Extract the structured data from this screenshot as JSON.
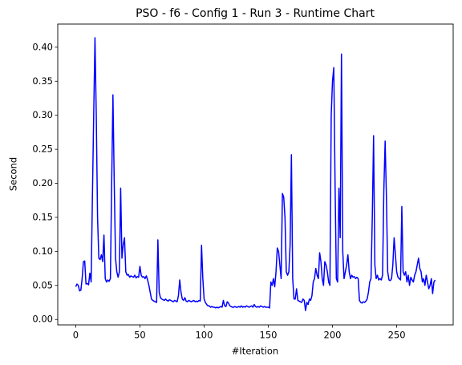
{
  "chart_data": {
    "type": "line",
    "title": "PSO - f6 - Config 1 - Run 3 - Runtime Chart",
    "x_label": "#Iteration",
    "y_label": "Second",
    "color": "#0000ff",
    "x": [
      0,
      1,
      2,
      3,
      4,
      5,
      6,
      7,
      8,
      9,
      10,
      11,
      12,
      13,
      14,
      15,
      16,
      17,
      18,
      19,
      20,
      21,
      22,
      23,
      24,
      25,
      26,
      27,
      28,
      29,
      30,
      31,
      32,
      33,
      34,
      35,
      36,
      37,
      38,
      39,
      40,
      41,
      42,
      43,
      44,
      45,
      46,
      47,
      48,
      49,
      50,
      51,
      52,
      53,
      54,
      55,
      56,
      57,
      58,
      59,
      60,
      61,
      62,
      63,
      64,
      65,
      66,
      67,
      68,
      69,
      70,
      71,
      72,
      73,
      74,
      75,
      76,
      77,
      78,
      79,
      80,
      81,
      82,
      83,
      84,
      85,
      86,
      87,
      88,
      89,
      90,
      91,
      92,
      93,
      94,
      95,
      96,
      97,
      98,
      99,
      100,
      101,
      102,
      103,
      104,
      105,
      106,
      107,
      108,
      109,
      110,
      111,
      112,
      113,
      114,
      115,
      116,
      117,
      118,
      119,
      120,
      121,
      122,
      123,
      124,
      125,
      126,
      127,
      128,
      129,
      130,
      131,
      132,
      133,
      134,
      135,
      136,
      137,
      138,
      139,
      140,
      141,
      142,
      143,
      144,
      145,
      146,
      147,
      148,
      149,
      150,
      151,
      152,
      153,
      154,
      155,
      156,
      157,
      158,
      159,
      160,
      161,
      162,
      163,
      164,
      165,
      166,
      167,
      168,
      169,
      170,
      171,
      172,
      173,
      174,
      175,
      176,
      177,
      178,
      179,
      180,
      181,
      182,
      183,
      184,
      185,
      186,
      187,
      188,
      189,
      190,
      191,
      192,
      193,
      194,
      195,
      196,
      197,
      198,
      199,
      200,
      201,
      202,
      203,
      204,
      205,
      206,
      207,
      208,
      209,
      210,
      211,
      212,
      213,
      214,
      215,
      216,
      217,
      218,
      219,
      220,
      221,
      222,
      223,
      224,
      225,
      226,
      227,
      228,
      229,
      230,
      231,
      232,
      233,
      234,
      235,
      236,
      237,
      238,
      239,
      240,
      241,
      242,
      243,
      244,
      245,
      246,
      247,
      248,
      249,
      250,
      251,
      252,
      253,
      254,
      255,
      256,
      257,
      258,
      259,
      260,
      261,
      262,
      263,
      264,
      265,
      266,
      267,
      268,
      269,
      270,
      271,
      272,
      273,
      274,
      275,
      276,
      277,
      278,
      279,
      280
    ],
    "values": [
      0.048,
      0.052,
      0.05,
      0.042,
      0.043,
      0.06,
      0.085,
      0.086,
      0.052,
      0.053,
      0.051,
      0.068,
      0.055,
      0.18,
      0.3,
      0.414,
      0.3,
      0.15,
      0.09,
      0.088,
      0.095,
      0.085,
      0.124,
      0.06,
      0.055,
      0.058,
      0.056,
      0.06,
      0.2,
      0.33,
      0.2,
      0.09,
      0.07,
      0.062,
      0.07,
      0.193,
      0.09,
      0.11,
      0.12,
      0.07,
      0.065,
      0.066,
      0.062,
      0.064,
      0.063,
      0.062,
      0.065,
      0.061,
      0.063,
      0.062,
      0.078,
      0.065,
      0.062,
      0.063,
      0.06,
      0.064,
      0.058,
      0.05,
      0.04,
      0.03,
      0.028,
      0.027,
      0.026,
      0.025,
      0.117,
      0.04,
      0.032,
      0.03,
      0.029,
      0.028,
      0.03,
      0.028,
      0.027,
      0.029,
      0.028,
      0.027,
      0.026,
      0.028,
      0.027,
      0.026,
      0.035,
      0.058,
      0.04,
      0.03,
      0.028,
      0.032,
      0.027,
      0.026,
      0.028,
      0.027,
      0.026,
      0.027,
      0.028,
      0.026,
      0.027,
      0.026,
      0.028,
      0.027,
      0.109,
      0.06,
      0.03,
      0.025,
      0.022,
      0.02,
      0.02,
      0.018,
      0.019,
      0.018,
      0.018,
      0.017,
      0.018,
      0.017,
      0.018,
      0.019,
      0.018,
      0.028,
      0.02,
      0.019,
      0.026,
      0.024,
      0.02,
      0.019,
      0.018,
      0.018,
      0.019,
      0.018,
      0.018,
      0.019,
      0.018,
      0.02,
      0.018,
      0.019,
      0.018,
      0.02,
      0.019,
      0.018,
      0.019,
      0.02,
      0.018,
      0.022,
      0.019,
      0.018,
      0.019,
      0.018,
      0.02,
      0.019,
      0.018,
      0.019,
      0.018,
      0.018,
      0.018,
      0.017,
      0.055,
      0.05,
      0.06,
      0.048,
      0.07,
      0.105,
      0.1,
      0.08,
      0.06,
      0.185,
      0.18,
      0.15,
      0.07,
      0.065,
      0.07,
      0.11,
      0.242,
      0.06,
      0.03,
      0.03,
      0.045,
      0.028,
      0.027,
      0.026,
      0.025,
      0.03,
      0.028,
      0.013,
      0.025,
      0.022,
      0.03,
      0.028,
      0.035,
      0.055,
      0.06,
      0.075,
      0.065,
      0.06,
      0.098,
      0.085,
      0.06,
      0.05,
      0.085,
      0.08,
      0.07,
      0.055,
      0.05,
      0.3,
      0.35,
      0.37,
      0.2,
      0.06,
      0.055,
      0.193,
      0.12,
      0.39,
      0.1,
      0.06,
      0.07,
      0.08,
      0.095,
      0.07,
      0.06,
      0.065,
      0.062,
      0.063,
      0.06,
      0.062,
      0.06,
      0.028,
      0.025,
      0.024,
      0.026,
      0.025,
      0.027,
      0.03,
      0.04,
      0.055,
      0.06,
      0.15,
      0.27,
      0.08,
      0.06,
      0.065,
      0.058,
      0.06,
      0.058,
      0.065,
      0.19,
      0.262,
      0.18,
      0.07,
      0.058,
      0.057,
      0.06,
      0.08,
      0.12,
      0.095,
      0.07,
      0.062,
      0.06,
      0.058,
      0.166,
      0.07,
      0.065,
      0.07,
      0.055,
      0.065,
      0.05,
      0.062,
      0.058,
      0.055,
      0.065,
      0.07,
      0.08,
      0.09,
      0.075,
      0.07,
      0.055,
      0.06,
      0.05,
      0.065,
      0.055,
      0.045,
      0.05,
      0.06,
      0.038,
      0.055,
      0.058
    ],
    "xlim": [
      -14,
      294
    ],
    "xticks": [
      0,
      50,
      100,
      150,
      200,
      250
    ],
    "ylim": [
      -0.008,
      0.434
    ],
    "yticks": [
      {
        "value": 0,
        "label": "0.00"
      },
      {
        "value": 0.05,
        "label": "0.05"
      },
      {
        "value": 0.1,
        "label": "0.10"
      },
      {
        "value": 0.15,
        "label": "0.15"
      },
      {
        "value": 0.2,
        "label": "0.20"
      },
      {
        "value": 0.25,
        "label": "0.25"
      },
      {
        "value": 0.3,
        "label": "0.30"
      },
      {
        "value": 0.35,
        "label": "0.35"
      },
      {
        "value": 0.4,
        "label": "0.40"
      }
    ],
    "grid": false
  }
}
